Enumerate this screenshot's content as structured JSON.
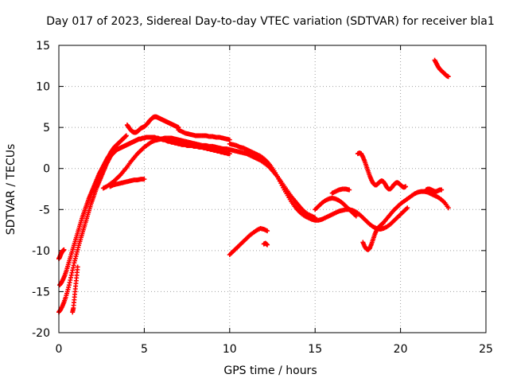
{
  "chart_data": {
    "type": "scatter",
    "title": "Day 017 of 2023, Sidereal Day-to-day VTEC variation (SDTVAR) for receiver bla1",
    "xlabel": "GPS time / hours",
    "ylabel": "SDTVAR / TECUs",
    "xlim": [
      0,
      25
    ],
    "ylim": [
      -20,
      15
    ],
    "xticks": [
      0,
      5,
      10,
      15,
      20,
      25
    ],
    "yticks": [
      -20,
      -15,
      -10,
      -5,
      0,
      5,
      10,
      15
    ],
    "grid": true,
    "marker": "+",
    "series": [
      {
        "name": "SDTVAR",
        "color": "#ff0000",
        "segments": [
          {
            "x": [
              0.0,
              0.1,
              0.2,
              0.3,
              0.4,
              0.5,
              0.6,
              0.7,
              0.8,
              0.9,
              1.0,
              1.1,
              1.2,
              1.3,
              1.4,
              1.5,
              1.6,
              1.7,
              1.8,
              1.9,
              2.0,
              2.1,
              2.2,
              2.3,
              2.4,
              2.5,
              2.6,
              2.7,
              2.8,
              2.9,
              3.0,
              3.1,
              3.2,
              3.3,
              3.4,
              3.5,
              3.6,
              3.7,
              3.8,
              3.9,
              4.0,
              4.1,
              4.2,
              4.3,
              4.4,
              4.5,
              4.6,
              4.7,
              4.8,
              4.9,
              5.0,
              5.1,
              5.2,
              5.3,
              5.4,
              5.5,
              5.6,
              5.7,
              5.8,
              5.9,
              6.0,
              6.1,
              6.2,
              6.3,
              6.4,
              6.5,
              6.6,
              6.7,
              6.8,
              6.9,
              7.0,
              7.1,
              7.2,
              7.3,
              7.4,
              7.5,
              7.6,
              7.7,
              7.8,
              7.9,
              8.0,
              8.1,
              8.2,
              8.3,
              8.4,
              8.5,
              8.6,
              8.7,
              8.8,
              8.9,
              9.0,
              9.1,
              9.2,
              9.3,
              9.4,
              9.5,
              9.6,
              9.7,
              9.8,
              9.9,
              10.0
            ],
            "y": [
              -17.5,
              -17.2,
              -16.8,
              -16.3,
              -15.7,
              -15.0,
              -14.2,
              -13.3,
              -12.4,
              -11.5,
              -10.7,
              -9.9,
              -9.1,
              -8.4,
              -7.7,
              -7.0,
              -6.3,
              -5.6,
              -4.9,
              -4.2,
              -3.6,
              -3.0,
              -2.4,
              -1.9,
              -1.4,
              -0.9,
              -0.4,
              0.1,
              0.6,
              1.0,
              1.4,
              1.7,
              1.9,
              2.1,
              2.3,
              2.4,
              2.5,
              2.6,
              2.7,
              2.8,
              2.9,
              3.0,
              3.1,
              3.2,
              3.3,
              3.4,
              3.5,
              3.6,
              3.6,
              3.7,
              3.7,
              3.8,
              3.8,
              3.8,
              3.8,
              3.8,
              3.8,
              3.7,
              3.7,
              3.6,
              3.6,
              3.5,
              3.5,
              3.4,
              3.3,
              3.3,
              3.2,
              3.2,
              3.1,
              3.1,
              3.0,
              3.0,
              2.9,
              2.9,
              2.9,
              2.8,
              2.8,
              2.8,
              2.8,
              2.7,
              2.7,
              2.7,
              2.6,
              2.6,
              2.6,
              2.5,
              2.5,
              2.4,
              2.4,
              2.3,
              2.3,
              2.2,
              2.2,
              2.1,
              2.1,
              2.0,
              2.0,
              1.9,
              1.9,
              1.8,
              1.8
            ]
          },
          {
            "x": [
              0.05,
              0.15,
              0.25,
              0.35,
              0.45,
              0.55,
              0.65,
              0.75,
              0.85,
              0.95,
              1.05,
              1.15,
              1.25,
              1.35,
              1.45,
              1.55,
              1.65,
              1.75,
              1.85,
              1.95,
              2.05,
              2.15,
              2.25,
              2.35,
              2.45,
              2.55,
              2.65,
              2.75,
              2.85,
              2.95,
              3.05,
              3.15,
              3.25,
              3.35,
              3.45,
              3.55,
              3.65,
              3.75,
              3.85,
              3.95
            ],
            "y": [
              -14.2,
              -13.9,
              -13.5,
              -13.0,
              -12.4,
              -11.7,
              -11.0,
              -10.3,
              -9.6,
              -8.9,
              -8.2,
              -7.5,
              -6.8,
              -6.1,
              -5.5,
              -4.9,
              -4.3,
              -3.7,
              -3.2,
              -2.7,
              -2.2,
              -1.7,
              -1.2,
              -0.7,
              -0.3,
              0.1,
              0.5,
              0.9,
              1.3,
              1.6,
              2.0,
              2.3,
              2.6,
              2.8,
              3.0,
              3.2,
              3.4,
              3.6,
              3.8,
              4.0
            ]
          },
          {
            "x": [
              0.0,
              0.05,
              0.1,
              0.15,
              0.2,
              0.25,
              0.3
            ],
            "y": [
              -11.0,
              -10.8,
              -10.5,
              -10.3,
              -10.1,
              -10.0,
              -9.9
            ]
          },
          {
            "x": [
              0.8,
              0.85,
              0.9,
              0.95,
              1.0,
              1.05,
              1.1
            ],
            "y": [
              -17.5,
              -17.0,
              -16.0,
              -15.0,
              -14.0,
              -13.0,
              -12.0
            ]
          },
          {
            "x": [
              2.6,
              2.8,
              3.0,
              3.2,
              3.4,
              3.6,
              3.8,
              4.0,
              4.2,
              4.4,
              4.6,
              4.8,
              5.0,
              5.2,
              5.4,
              5.6,
              5.8,
              6.0,
              6.2,
              6.4,
              6.6,
              6.8,
              7.0,
              7.2,
              7.4,
              7.6,
              7.8,
              8.0,
              8.2,
              8.4,
              8.6,
              8.8,
              9.0,
              9.2,
              9.4,
              9.6,
              9.8,
              10.0,
              10.2,
              10.4,
              10.6,
              10.8,
              11.0,
              11.2,
              11.4,
              11.6,
              11.8,
              12.0,
              12.2,
              12.4,
              12.6,
              12.8,
              13.0,
              13.2,
              13.4,
              13.6,
              13.8,
              14.0,
              14.2,
              14.4,
              14.6,
              14.8,
              15.0
            ],
            "y": [
              -2.4,
              -2.2,
              -1.9,
              -1.6,
              -1.2,
              -0.8,
              -0.3,
              0.2,
              0.8,
              1.3,
              1.8,
              2.2,
              2.6,
              2.9,
              3.2,
              3.4,
              3.5,
              3.6,
              3.7,
              3.7,
              3.7,
              3.6,
              3.5,
              3.4,
              3.3,
              3.2,
              3.1,
              3.0,
              2.9,
              2.8,
              2.8,
              2.7,
              2.7,
              2.6,
              2.5,
              2.4,
              2.4,
              2.3,
              2.2,
              2.1,
              2.0,
              1.9,
              1.8,
              1.6,
              1.4,
              1.2,
              1.0,
              0.7,
              0.4,
              0.0,
              -0.5,
              -1.0,
              -1.6,
              -2.2,
              -2.8,
              -3.4,
              -3.9,
              -4.4,
              -4.9,
              -5.3,
              -5.6,
              -5.8,
              -6.0
            ]
          },
          {
            "x": [
              4.0,
              4.1,
              4.2,
              4.3,
              4.4,
              4.5,
              4.6,
              4.7,
              4.8,
              4.9,
              5.0,
              5.1,
              5.2,
              5.3,
              5.4,
              5.5,
              5.6,
              5.7,
              5.8,
              5.9,
              6.0,
              6.1,
              6.2,
              6.3,
              6.4,
              6.5,
              6.6,
              6.7,
              6.8,
              6.9,
              7.0
            ],
            "y": [
              5.3,
              5.0,
              4.7,
              4.5,
              4.4,
              4.4,
              4.5,
              4.7,
              4.9,
              5.0,
              5.1,
              5.3,
              5.5,
              5.8,
              6.0,
              6.2,
              6.3,
              6.3,
              6.2,
              6.1,
              6.0,
              5.9,
              5.8,
              5.7,
              5.6,
              5.5,
              5.4,
              5.3,
              5.2,
              5.1,
              5.0
            ]
          },
          {
            "x": [
              7.0,
              7.2,
              7.4,
              7.6,
              7.8,
              8.0,
              8.2,
              8.4,
              8.6,
              8.8,
              9.0,
              9.2,
              9.4,
              9.6,
              9.8,
              10.0
            ],
            "y": [
              4.7,
              4.5,
              4.3,
              4.2,
              4.1,
              4.0,
              4.0,
              4.0,
              4.0,
              3.9,
              3.9,
              3.8,
              3.8,
              3.7,
              3.6,
              3.5
            ]
          },
          {
            "x": [
              3.0,
              3.2,
              3.4,
              3.6,
              3.8,
              4.0,
              4.2,
              4.4,
              4.6,
              4.8,
              5.0
            ],
            "y": [
              -2.2,
              -2.0,
              -1.9,
              -1.8,
              -1.7,
              -1.6,
              -1.5,
              -1.4,
              -1.4,
              -1.3,
              -1.3
            ]
          },
          {
            "x": [
              10.0,
              10.2,
              10.4,
              10.6,
              10.8,
              11.0,
              11.2,
              11.4,
              11.6,
              11.8,
              12.0,
              12.2
            ],
            "y": [
              -10.5,
              -10.1,
              -9.7,
              -9.3,
              -8.9,
              -8.5,
              -8.1,
              -7.8,
              -7.5,
              -7.3,
              -7.4,
              -7.6
            ]
          },
          {
            "x": [
              12.0,
              12.1,
              12.2
            ],
            "y": [
              -9.2,
              -9.1,
              -9.3
            ]
          },
          {
            "x": [
              10.0,
              10.2,
              10.4,
              10.6,
              10.8,
              11.0,
              11.2,
              11.4,
              11.6,
              11.8,
              12.0,
              12.2,
              12.4,
              12.6,
              12.8,
              13.0,
              13.2,
              13.4,
              13.6,
              13.8,
              14.0,
              14.2,
              14.4,
              14.6,
              14.8,
              15.0,
              15.2,
              15.4,
              15.6,
              15.8,
              16.0,
              16.2,
              16.4,
              16.6,
              16.8,
              17.0,
              17.2,
              17.4,
              17.6,
              17.8,
              18.0,
              18.2,
              18.4,
              18.6,
              18.8,
              19.0,
              19.2,
              19.4,
              19.6,
              19.8,
              20.0,
              20.2,
              20.4
            ],
            "y": [
              3.0,
              2.9,
              2.8,
              2.6,
              2.5,
              2.3,
              2.1,
              1.9,
              1.7,
              1.5,
              1.2,
              0.8,
              0.3,
              -0.3,
              -1.0,
              -1.8,
              -2.6,
              -3.3,
              -4.0,
              -4.6,
              -5.1,
              -5.5,
              -5.8,
              -6.0,
              -6.2,
              -6.3,
              -6.3,
              -6.2,
              -6.0,
              -5.8,
              -5.6,
              -5.4,
              -5.2,
              -5.1,
              -5.0,
              -5.0,
              -5.1,
              -5.3,
              -5.6,
              -6.0,
              -6.4,
              -6.8,
              -7.1,
              -7.3,
              -7.4,
              -7.3,
              -7.1,
              -6.8,
              -6.4,
              -6.0,
              -5.6,
              -5.2,
              -4.8
            ]
          },
          {
            "x": [
              15.0,
              15.2,
              15.4,
              15.6,
              15.8,
              16.0,
              16.2,
              16.4,
              16.6,
              16.8,
              17.0,
              17.2,
              17.4
            ],
            "y": [
              -5.0,
              -4.6,
              -4.2,
              -3.9,
              -3.7,
              -3.6,
              -3.7,
              -3.9,
              -4.2,
              -4.6,
              -5.0,
              -5.4,
              -5.8
            ]
          },
          {
            "x": [
              16.0,
              16.2,
              16.4,
              16.6,
              16.8,
              17.0
            ],
            "y": [
              -3.0,
              -2.8,
              -2.6,
              -2.5,
              -2.5,
              -2.6
            ]
          },
          {
            "x": [
              17.5,
              17.6,
              17.7,
              17.8,
              17.9,
              18.0,
              18.1,
              18.2,
              18.3,
              18.4,
              18.5,
              18.6,
              18.7,
              18.8,
              18.9,
              19.0,
              19.1,
              19.2,
              19.3,
              19.4,
              19.5,
              19.6,
              19.7,
              19.8,
              19.9,
              20.0,
              20.1,
              20.2,
              20.3
            ],
            "y": [
              1.8,
              1.9,
              1.8,
              1.4,
              0.9,
              0.3,
              -0.3,
              -0.9,
              -1.4,
              -1.8,
              -2.0,
              -2.0,
              -1.8,
              -1.6,
              -1.5,
              -1.6,
              -1.9,
              -2.3,
              -2.5,
              -2.5,
              -2.3,
              -2.0,
              -1.8,
              -1.7,
              -1.8,
              -2.0,
              -2.2,
              -2.3,
              -2.2
            ]
          },
          {
            "x": [
              17.8,
              17.9,
              18.0,
              18.1,
              18.2,
              18.3,
              18.4,
              18.5,
              18.6,
              18.7,
              18.8,
              18.9,
              19.0,
              19.2,
              19.4,
              19.6,
              19.8,
              20.0,
              20.2,
              20.4,
              20.6,
              20.8,
              21.0,
              21.2,
              21.4,
              21.6,
              21.8,
              22.0,
              22.2,
              22.4,
              22.6,
              22.8
            ],
            "y": [
              -9.0,
              -9.5,
              -9.8,
              -9.9,
              -9.7,
              -9.2,
              -8.6,
              -8.0,
              -7.5,
              -7.2,
              -7.0,
              -6.8,
              -6.6,
              -6.1,
              -5.6,
              -5.1,
              -4.7,
              -4.3,
              -4.0,
              -3.7,
              -3.4,
              -3.1,
              -2.9,
              -2.8,
              -2.8,
              -2.9,
              -3.1,
              -3.3,
              -3.5,
              -3.8,
              -4.2,
              -4.8
            ]
          },
          {
            "x": [
              21.5,
              21.6,
              21.7,
              21.8,
              21.9,
              22.0,
              22.1,
              22.2,
              22.3,
              22.4
            ],
            "y": [
              -2.6,
              -2.5,
              -2.5,
              -2.6,
              -2.7,
              -2.8,
              -2.8,
              -2.7,
              -2.6,
              -2.6
            ]
          },
          {
            "x": [
              22.0,
              22.1,
              22.2,
              22.3,
              22.4,
              22.5,
              22.6,
              22.7,
              22.8
            ],
            "y": [
              13.2,
              12.8,
              12.4,
              12.1,
              11.9,
              11.7,
              11.5,
              11.3,
              11.2
            ]
          }
        ]
      }
    ]
  }
}
